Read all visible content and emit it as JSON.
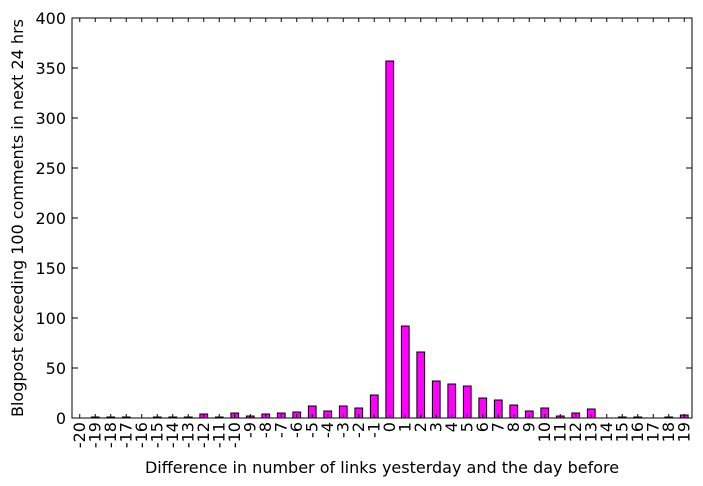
{
  "chart_data": {
    "type": "bar",
    "xlabel": "Difference in number of links yesterday and the day before",
    "ylabel": "Blogpost exceeding 100 comments in next 24 hrs",
    "ylim": [
      0,
      400
    ],
    "yticks": [
      0,
      50,
      100,
      150,
      200,
      250,
      300,
      350,
      400
    ],
    "grid": false,
    "bar_color": "#ff00ff",
    "categories": [
      "-20",
      "-19",
      "-18",
      "-17",
      "-16",
      "-15",
      "-14",
      "-13",
      "-12",
      "-11",
      "-10",
      "-9",
      "-8",
      "-7",
      "-6",
      "-5",
      "-4",
      "-3",
      "-2",
      "-1",
      "0",
      "1",
      "2",
      "3",
      "4",
      "5",
      "6",
      "7",
      "8",
      "9",
      "10",
      "11",
      "12",
      "13",
      "14",
      "15",
      "16",
      "17",
      "18",
      "19"
    ],
    "values": [
      0,
      1,
      1,
      1,
      0,
      1,
      1,
      1,
      4,
      1,
      5,
      2,
      4,
      5,
      6,
      12,
      7,
      12,
      10,
      23,
      357,
      92,
      66,
      37,
      34,
      32,
      20,
      18,
      13,
      7,
      10,
      2,
      5,
      9,
      0,
      1,
      1,
      0,
      1,
      3
    ]
  }
}
